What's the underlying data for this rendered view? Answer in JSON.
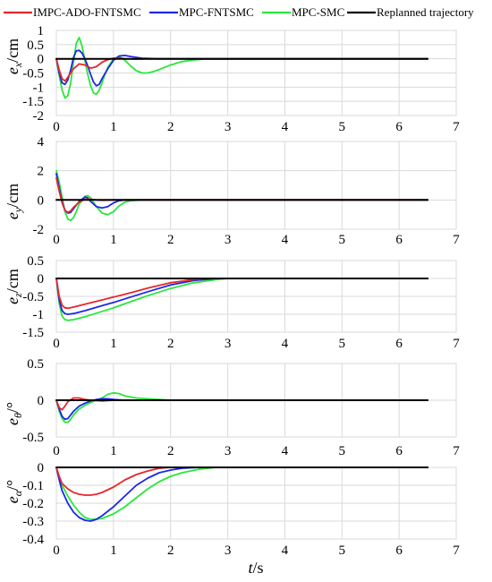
{
  "chart_data": [
    {
      "type": "line",
      "xlim": [
        0,
        7
      ],
      "ylim": [
        -2,
        1
      ],
      "xticks": [
        "0",
        "1",
        "2",
        "3",
        "4",
        "5",
        "6",
        "7"
      ],
      "yticks": [
        "1",
        "0.5",
        "0",
        "-0.5",
        "-1",
        "-1.5",
        "-2"
      ],
      "ylabel": {
        "main": "e",
        "sub": "x",
        "unit": "/cm"
      },
      "series": [
        {
          "name": "IMPC-ADO-FNTSMC",
          "color": "#e8262b",
          "x": [
            0,
            0.05,
            0.1,
            0.15,
            0.2,
            0.3,
            0.4,
            0.5,
            0.6,
            0.7,
            0.8,
            0.9,
            1.0,
            1.1,
            1.2,
            1.4,
            1.6,
            2.0,
            6.5
          ],
          "y": [
            0,
            -0.4,
            -0.7,
            -0.78,
            -0.65,
            -0.35,
            -0.18,
            -0.22,
            -0.33,
            -0.28,
            -0.12,
            -0.03,
            0.02,
            0.03,
            0.0,
            -0.01,
            0,
            0,
            0
          ]
        },
        {
          "name": "MPC-FNTSMC",
          "color": "#1c28e8",
          "x": [
            0,
            0.05,
            0.1,
            0.15,
            0.2,
            0.25,
            0.3,
            0.35,
            0.4,
            0.45,
            0.5,
            0.55,
            0.6,
            0.65,
            0.7,
            0.75,
            0.8,
            0.9,
            1.0,
            1.1,
            1.2,
            1.3,
            1.5,
            1.8,
            6.5
          ],
          "y": [
            0,
            -0.5,
            -0.85,
            -0.9,
            -0.75,
            -0.4,
            0.05,
            0.28,
            0.3,
            0.2,
            0.0,
            -0.25,
            -0.55,
            -0.82,
            -0.95,
            -0.9,
            -0.7,
            -0.35,
            -0.05,
            0.1,
            0.12,
            0.08,
            0.02,
            0,
            0
          ]
        },
        {
          "name": "MPC-SMC",
          "color": "#27e83a",
          "x": [
            0,
            0.05,
            0.1,
            0.15,
            0.2,
            0.25,
            0.3,
            0.35,
            0.4,
            0.45,
            0.5,
            0.55,
            0.6,
            0.65,
            0.7,
            0.75,
            0.8,
            0.85,
            0.9,
            1.0,
            1.1,
            1.2,
            1.3,
            1.4,
            1.5,
            1.6,
            1.7,
            1.8,
            2.0,
            2.2,
            2.4,
            2.6,
            3.3,
            3.9,
            6.5
          ],
          "y": [
            0,
            -0.6,
            -1.1,
            -1.38,
            -1.3,
            -0.85,
            -0.1,
            0.55,
            0.75,
            0.45,
            -0.05,
            -0.55,
            -0.95,
            -1.2,
            -1.25,
            -1.1,
            -0.85,
            -0.55,
            -0.3,
            0.0,
            0.08,
            -0.05,
            -0.25,
            -0.42,
            -0.5,
            -0.5,
            -0.45,
            -0.38,
            -0.22,
            -0.1,
            -0.04,
            -0.01,
            0,
            0,
            0
          ]
        },
        {
          "name": "Replanned trajectory",
          "color": "#000000",
          "x": [
            0,
            6.5
          ],
          "y": [
            0,
            0
          ]
        }
      ]
    },
    {
      "type": "line",
      "xlim": [
        0,
        7
      ],
      "ylim": [
        -2,
        4
      ],
      "xticks": [
        "0",
        "1",
        "2",
        "3",
        "4",
        "5",
        "6",
        "7"
      ],
      "yticks": [
        "4",
        "2",
        "0",
        "-2"
      ],
      "ylabel": {
        "main": "e",
        "sub": "y",
        "unit": "/cm"
      },
      "series": [
        {
          "name": "IMPC-ADO-FNTSMC",
          "color": "#e8262b",
          "x": [
            0,
            0.05,
            0.1,
            0.15,
            0.2,
            0.25,
            0.3,
            0.4,
            0.5,
            0.6,
            0.7,
            0.8,
            1.0,
            6.5
          ],
          "y": [
            1.5,
            0.6,
            -0.2,
            -0.7,
            -0.85,
            -0.75,
            -0.5,
            -0.15,
            0.05,
            0.05,
            0.0,
            -0.02,
            0,
            0
          ]
        },
        {
          "name": "MPC-FNTSMC",
          "color": "#1c28e8",
          "x": [
            0,
            0.05,
            0.1,
            0.15,
            0.2,
            0.25,
            0.3,
            0.4,
            0.5,
            0.55,
            0.6,
            0.7,
            0.8,
            0.9,
            1.0,
            1.1,
            1.2,
            6.5
          ],
          "y": [
            1.8,
            0.8,
            -0.1,
            -0.7,
            -0.9,
            -0.85,
            -0.6,
            -0.1,
            0.2,
            0.15,
            -0.1,
            -0.45,
            -0.55,
            -0.45,
            -0.2,
            -0.05,
            0,
            0
          ]
        },
        {
          "name": "MPC-SMC",
          "color": "#27e83a",
          "x": [
            0,
            0.05,
            0.1,
            0.15,
            0.2,
            0.25,
            0.3,
            0.35,
            0.4,
            0.5,
            0.55,
            0.6,
            0.7,
            0.8,
            0.9,
            1.0,
            1.1,
            1.2,
            1.3,
            1.5,
            6.5
          ],
          "y": [
            2.0,
            1.2,
            0.2,
            -0.8,
            -1.3,
            -1.4,
            -1.2,
            -0.8,
            -0.3,
            0.25,
            0.3,
            0.15,
            -0.45,
            -0.9,
            -1.0,
            -0.8,
            -0.4,
            -0.15,
            -0.05,
            0,
            0
          ]
        },
        {
          "name": "Replanned trajectory",
          "color": "#000000",
          "x": [
            0,
            6.5
          ],
          "y": [
            0,
            0
          ]
        }
      ]
    },
    {
      "type": "line",
      "xlim": [
        0,
        7
      ],
      "ylim": [
        -1.5,
        0.5
      ],
      "xticks": [
        "0",
        "1",
        "2",
        "3",
        "4",
        "5",
        "6",
        "7"
      ],
      "yticks": [
        "0.5",
        "0",
        "-0.5",
        "-1",
        "-1.5"
      ],
      "ylabel": {
        "main": "e",
        "sub": "z",
        "unit": "/cm"
      },
      "series": [
        {
          "name": "IMPC-ADO-FNTSMC",
          "color": "#e8262b",
          "x": [
            0,
            0.05,
            0.1,
            0.15,
            0.2,
            0.3,
            0.5,
            0.8,
            1.0,
            1.3,
            1.6,
            2.0,
            2.4,
            2.7,
            6.5
          ],
          "y": [
            0,
            -0.5,
            -0.75,
            -0.82,
            -0.83,
            -0.8,
            -0.72,
            -0.6,
            -0.52,
            -0.4,
            -0.27,
            -0.12,
            -0.03,
            0,
            0
          ]
        },
        {
          "name": "MPC-FNTSMC",
          "color": "#1c28e8",
          "x": [
            0,
            0.05,
            0.1,
            0.15,
            0.2,
            0.3,
            0.5,
            0.8,
            1.0,
            1.3,
            1.6,
            2.0,
            2.4,
            2.8,
            6.5
          ],
          "y": [
            0,
            -0.6,
            -0.9,
            -0.98,
            -1.0,
            -0.98,
            -0.9,
            -0.76,
            -0.67,
            -0.52,
            -0.37,
            -0.18,
            -0.06,
            0,
            0
          ]
        },
        {
          "name": "MPC-SMC",
          "color": "#27e83a",
          "x": [
            0,
            0.05,
            0.1,
            0.15,
            0.2,
            0.3,
            0.5,
            0.8,
            1.0,
            1.3,
            1.6,
            2.0,
            2.4,
            2.8,
            3.0,
            6.5
          ],
          "y": [
            0,
            -0.7,
            -1.05,
            -1.15,
            -1.17,
            -1.15,
            -1.07,
            -0.92,
            -0.82,
            -0.65,
            -0.48,
            -0.28,
            -0.12,
            -0.03,
            0,
            0
          ]
        },
        {
          "name": "Replanned trajectory",
          "color": "#000000",
          "x": [
            0,
            6.5
          ],
          "y": [
            0,
            0
          ]
        }
      ]
    },
    {
      "type": "line",
      "xlim": [
        0,
        7
      ],
      "ylim": [
        -0.5,
        0.5
      ],
      "xticks": [
        "0",
        "1",
        "2",
        "3",
        "4",
        "5",
        "6",
        "7"
      ],
      "yticks": [
        "0.5",
        "0",
        "-0.5"
      ],
      "ylabel": {
        "main": "e",
        "sub": "θ",
        "unit": "/°"
      },
      "series": [
        {
          "name": "IMPC-ADO-FNTSMC",
          "color": "#e8262b",
          "x": [
            0,
            0.05,
            0.1,
            0.15,
            0.2,
            0.3,
            0.4,
            0.5,
            0.6,
            0.8,
            1.0,
            6.5
          ],
          "y": [
            0,
            -0.1,
            -0.13,
            -0.08,
            -0.02,
            0.03,
            0.03,
            0.01,
            0.0,
            -0.01,
            0,
            0
          ]
        },
        {
          "name": "MPC-FNTSMC",
          "color": "#1c28e8",
          "x": [
            0,
            0.05,
            0.1,
            0.15,
            0.2,
            0.25,
            0.3,
            0.4,
            0.5,
            0.6,
            0.7,
            0.8,
            0.9,
            1.0,
            1.2,
            6.5
          ],
          "y": [
            0,
            -0.12,
            -0.22,
            -0.26,
            -0.25,
            -0.2,
            -0.15,
            -0.08,
            -0.04,
            -0.01,
            0.01,
            0.02,
            0.02,
            0.01,
            0,
            0
          ]
        },
        {
          "name": "MPC-SMC",
          "color": "#27e83a",
          "x": [
            0,
            0.05,
            0.1,
            0.15,
            0.2,
            0.25,
            0.3,
            0.4,
            0.5,
            0.6,
            0.7,
            0.8,
            0.9,
            1.0,
            1.1,
            1.2,
            1.4,
            1.6,
            1.8,
            2.0,
            6.5
          ],
          "y": [
            0,
            -0.15,
            -0.25,
            -0.3,
            -0.3,
            -0.26,
            -0.2,
            -0.12,
            -0.07,
            -0.03,
            0.0,
            0.03,
            0.08,
            0.1,
            0.09,
            0.06,
            0.03,
            0.02,
            0.01,
            0,
            0
          ]
        },
        {
          "name": "Replanned trajectory",
          "color": "#000000",
          "x": [
            0,
            6.5
          ],
          "y": [
            0,
            0
          ]
        }
      ]
    },
    {
      "type": "line",
      "xlim": [
        0,
        7
      ],
      "ylim": [
        -0.4,
        0
      ],
      "xticks": [
        "0",
        "1",
        "2",
        "3",
        "4",
        "5",
        "6",
        "7"
      ],
      "yticks": [
        "0",
        "-0.1",
        "-0.2",
        "-0.3",
        "-0.4"
      ],
      "xlabel": {
        "main": "t",
        "unit": "/s"
      },
      "ylabel": {
        "main": "e",
        "sub": "α",
        "unit": "/°"
      },
      "series": [
        {
          "name": "IMPC-ADO-FNTSMC",
          "color": "#e8262b",
          "x": [
            0,
            0.05,
            0.1,
            0.2,
            0.3,
            0.4,
            0.5,
            0.6,
            0.7,
            0.8,
            1.0,
            1.2,
            1.4,
            1.6,
            1.8,
            2.0,
            6.5
          ],
          "y": [
            0,
            -0.05,
            -0.09,
            -0.12,
            -0.14,
            -0.15,
            -0.155,
            -0.155,
            -0.15,
            -0.14,
            -0.11,
            -0.07,
            -0.04,
            -0.02,
            -0.005,
            0,
            0
          ]
        },
        {
          "name": "MPC-FNTSMC",
          "color": "#1c28e8",
          "x": [
            0,
            0.05,
            0.1,
            0.2,
            0.3,
            0.4,
            0.5,
            0.6,
            0.7,
            0.8,
            1.0,
            1.2,
            1.4,
            1.6,
            1.8,
            2.0,
            2.2,
            2.5,
            6.5
          ],
          "y": [
            0,
            -0.07,
            -0.13,
            -0.2,
            -0.25,
            -0.28,
            -0.295,
            -0.3,
            -0.29,
            -0.27,
            -0.22,
            -0.16,
            -0.1,
            -0.06,
            -0.03,
            -0.015,
            -0.005,
            0,
            0
          ]
        },
        {
          "name": "MPC-SMC",
          "color": "#27e83a",
          "x": [
            0,
            0.05,
            0.1,
            0.2,
            0.3,
            0.4,
            0.5,
            0.6,
            0.7,
            0.8,
            1.0,
            1.2,
            1.4,
            1.6,
            1.8,
            2.0,
            2.2,
            2.5,
            2.8,
            6.5
          ],
          "y": [
            0,
            -0.05,
            -0.1,
            -0.16,
            -0.21,
            -0.25,
            -0.28,
            -0.29,
            -0.29,
            -0.285,
            -0.26,
            -0.22,
            -0.17,
            -0.12,
            -0.08,
            -0.05,
            -0.03,
            -0.01,
            0,
            0
          ]
        },
        {
          "name": "Replanned trajectory",
          "color": "#000000",
          "x": [
            0,
            6.5
          ],
          "y": [
            0,
            0
          ]
        }
      ]
    }
  ],
  "legend": {
    "position": "top",
    "items": [
      {
        "label": "IMPC-ADO-FNTSMC",
        "color": "#e8262b"
      },
      {
        "label": "MPC-FNTSMC",
        "color": "#1c28e8"
      },
      {
        "label": "MPC-SMC",
        "color": "#27e83a"
      },
      {
        "label": "Replanned trajectory",
        "color": "#000000"
      }
    ]
  }
}
